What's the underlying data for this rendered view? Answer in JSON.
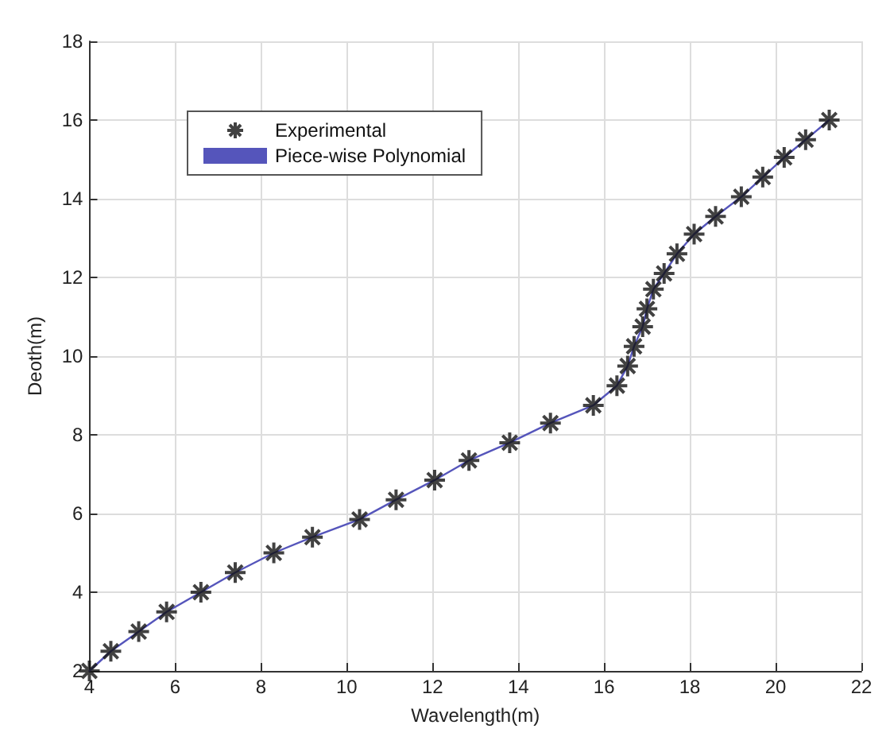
{
  "chart_data": {
    "type": "scatter",
    "xlabel": "Wavelength(m)",
    "ylabel": "Deoth(m)",
    "xlim": [
      4,
      22
    ],
    "xticks": [
      4,
      6,
      8,
      10,
      12,
      14,
      16,
      18,
      20,
      22
    ],
    "ylim": [
      2,
      18
    ],
    "yticks": [
      2,
      4,
      6,
      8,
      10,
      12,
      14,
      16,
      18
    ],
    "grid": true,
    "legend": "top left",
    "x": [
      4,
      4.5,
      5.15,
      5.8,
      6.6,
      7.4,
      8.3,
      9.2,
      10.3,
      11.15,
      12.05,
      12.85,
      13.8,
      14.75,
      15.75,
      16.3,
      16.55,
      16.7,
      16.9,
      17.0,
      17.15,
      17.4,
      17.7,
      18.1,
      18.6,
      19.2,
      19.7,
      20.2,
      20.7,
      21.25
    ],
    "series": [
      {
        "name": "Experimental",
        "marker": "cross",
        "color": "#111111",
        "values": [
          2,
          2.5,
          3,
          3.5,
          4,
          4.5,
          5,
          5.4,
          5.85,
          6.35,
          6.85,
          7.35,
          7.8,
          8.3,
          8.75,
          9.25,
          9.75,
          10.25,
          10.75,
          11.2,
          11.7,
          12.1,
          12.6,
          13.1,
          13.55,
          14.05,
          14.55,
          15.05,
          15.5,
          16
        ]
      },
      {
        "name": "Piece-wise Polynomial",
        "type": "line",
        "marker": "none",
        "line_style": "solid",
        "color": "#5555bb",
        "values": [
          2,
          2.5,
          3,
          3.5,
          4,
          4.5,
          5,
          5.4,
          5.85,
          6.35,
          6.85,
          7.35,
          7.8,
          8.3,
          8.75,
          9.25,
          9.75,
          10.25,
          10.75,
          11.2,
          11.7,
          12.1,
          12.6,
          13.1,
          13.55,
          14.05,
          14.55,
          15.05,
          15.5,
          16
        ]
      }
    ]
  }
}
